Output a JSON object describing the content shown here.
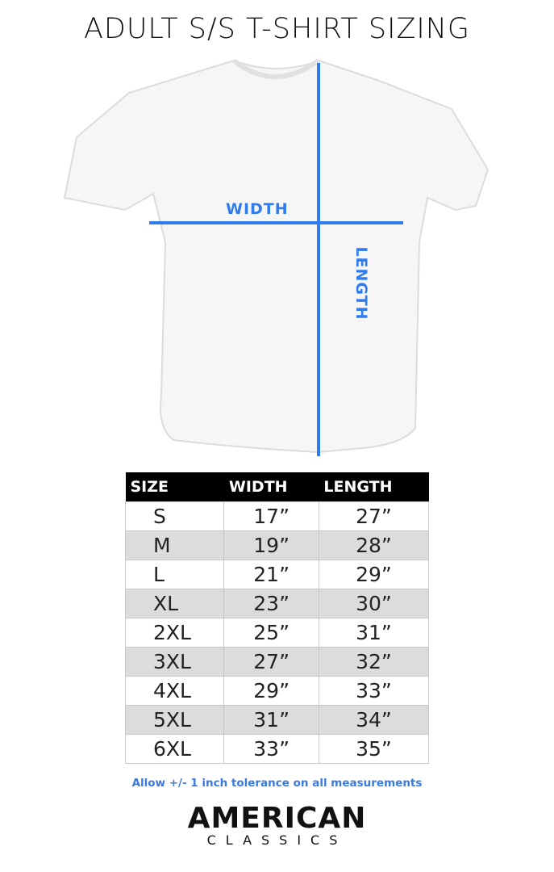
{
  "title": "ADULT S/S T-SHIRT SIZING",
  "diagram": {
    "width_label": "WIDTH",
    "length_label": "LENGTH",
    "line_color": "#2f7bef"
  },
  "table": {
    "headers": [
      "SIZE",
      "WIDTH",
      "LENGTH"
    ],
    "rows": [
      [
        "S",
        "17”",
        "27”"
      ],
      [
        "M",
        "19”",
        "28”"
      ],
      [
        "L",
        "21”",
        "29”"
      ],
      [
        "XL",
        "23”",
        "30”"
      ],
      [
        "2XL",
        "25”",
        "31”"
      ],
      [
        "3XL",
        "27”",
        "32”"
      ],
      [
        "4XL",
        "29”",
        "33”"
      ],
      [
        "5XL",
        "31”",
        "34”"
      ],
      [
        "6XL",
        "33”",
        "35”"
      ]
    ]
  },
  "note": "Allow +/- 1 inch tolerance on all measurements",
  "logo": {
    "line1": "AMERICAN",
    "line2": "CLASSICS"
  }
}
